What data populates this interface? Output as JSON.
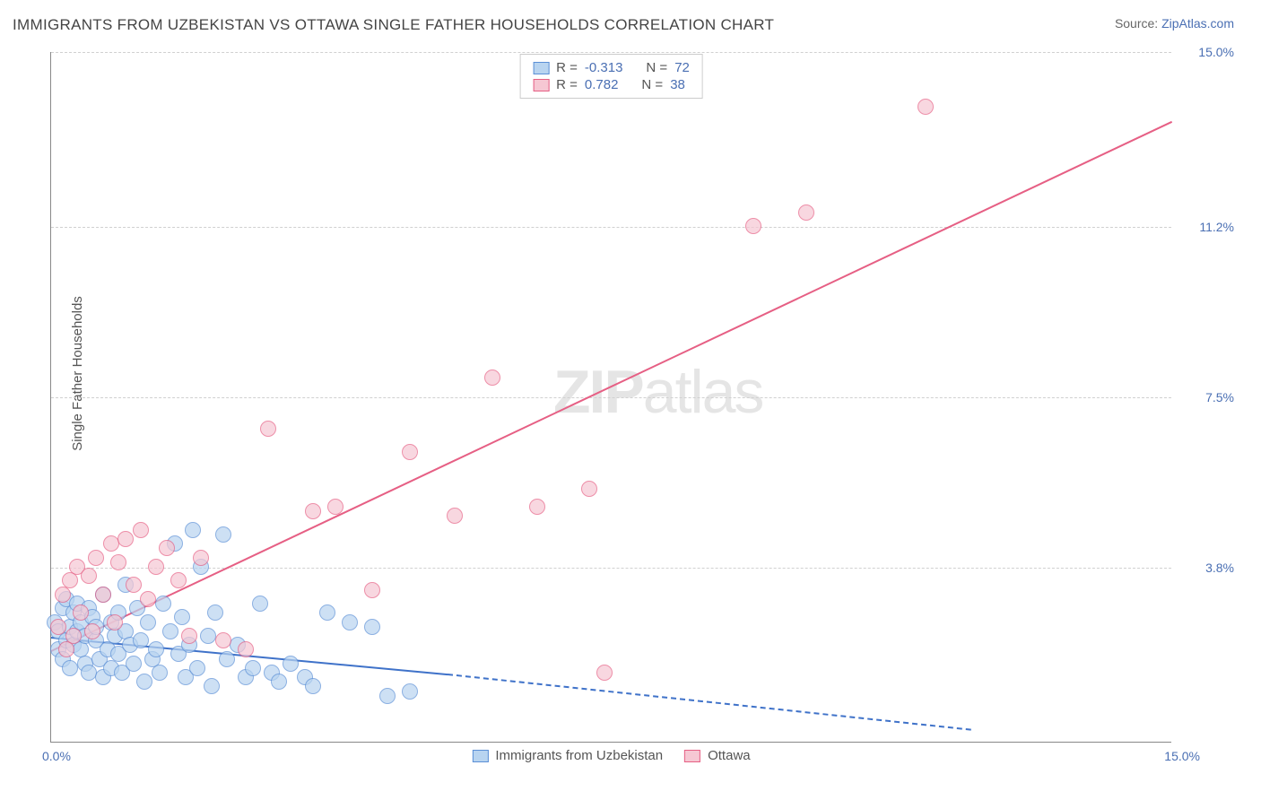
{
  "header": {
    "title": "IMMIGRANTS FROM UZBEKISTAN VS OTTAWA SINGLE FATHER HOUSEHOLDS CORRELATION CHART",
    "source_prefix": "Source: ",
    "source_link": "ZipAtlas.com"
  },
  "yaxis": {
    "label": "Single Father Households"
  },
  "xaxis": {
    "min_label": "0.0%",
    "max_label": "15.0%"
  },
  "chart": {
    "type": "scatter",
    "xlim": [
      0,
      15
    ],
    "ylim": [
      0,
      15
    ],
    "background_color": "#ffffff",
    "grid_color": "#d0d0d0",
    "grid_dash": true,
    "yticks": [
      {
        "value": 3.8,
        "label": "3.8%"
      },
      {
        "value": 7.5,
        "label": "7.5%"
      },
      {
        "value": 11.2,
        "label": "11.2%"
      },
      {
        "value": 15.0,
        "label": "15.0%"
      }
    ],
    "series": [
      {
        "name": "Immigrants from Uzbekistan",
        "marker_fill": "#b8d4f0",
        "marker_stroke": "#5b8fd6",
        "marker_opacity": 0.7,
        "marker_radius": 9,
        "trend": {
          "color": "#3f72c9",
          "width": 2,
          "start": [
            0,
            2.3
          ],
          "solid_end": [
            5.3,
            1.5
          ],
          "end": [
            12.3,
            0.3
          ],
          "dashed_after_solid": true
        },
        "r": "-0.313",
        "n": "72",
        "points": [
          [
            0.05,
            2.6
          ],
          [
            0.1,
            2.0
          ],
          [
            0.1,
            2.4
          ],
          [
            0.15,
            2.9
          ],
          [
            0.15,
            1.8
          ],
          [
            0.2,
            2.2
          ],
          [
            0.2,
            3.1
          ],
          [
            0.25,
            2.5
          ],
          [
            0.25,
            1.6
          ],
          [
            0.3,
            2.8
          ],
          [
            0.3,
            2.1
          ],
          [
            0.35,
            2.4
          ],
          [
            0.35,
            3.0
          ],
          [
            0.4,
            2.0
          ],
          [
            0.4,
            2.6
          ],
          [
            0.45,
            1.7
          ],
          [
            0.45,
            2.3
          ],
          [
            0.5,
            2.9
          ],
          [
            0.5,
            1.5
          ],
          [
            0.55,
            2.7
          ],
          [
            0.6,
            2.2
          ],
          [
            0.6,
            2.5
          ],
          [
            0.65,
            1.8
          ],
          [
            0.7,
            3.2
          ],
          [
            0.7,
            1.4
          ],
          [
            0.75,
            2.0
          ],
          [
            0.8,
            2.6
          ],
          [
            0.8,
            1.6
          ],
          [
            0.85,
            2.3
          ],
          [
            0.9,
            1.9
          ],
          [
            0.9,
            2.8
          ],
          [
            0.95,
            1.5
          ],
          [
            1.0,
            2.4
          ],
          [
            1.0,
            3.4
          ],
          [
            1.05,
            2.1
          ],
          [
            1.1,
            1.7
          ],
          [
            1.15,
            2.9
          ],
          [
            1.2,
            2.2
          ],
          [
            1.25,
            1.3
          ],
          [
            1.3,
            2.6
          ],
          [
            1.35,
            1.8
          ],
          [
            1.4,
            2.0
          ],
          [
            1.45,
            1.5
          ],
          [
            1.5,
            3.0
          ],
          [
            1.6,
            2.4
          ],
          [
            1.65,
            4.3
          ],
          [
            1.7,
            1.9
          ],
          [
            1.75,
            2.7
          ],
          [
            1.8,
            1.4
          ],
          [
            1.85,
            2.1
          ],
          [
            1.9,
            4.6
          ],
          [
            1.95,
            1.6
          ],
          [
            2.0,
            3.8
          ],
          [
            2.1,
            2.3
          ],
          [
            2.15,
            1.2
          ],
          [
            2.2,
            2.8
          ],
          [
            2.3,
            4.5
          ],
          [
            2.35,
            1.8
          ],
          [
            2.5,
            2.1
          ],
          [
            2.6,
            1.4
          ],
          [
            2.7,
            1.6
          ],
          [
            2.8,
            3.0
          ],
          [
            2.95,
            1.5
          ],
          [
            3.05,
            1.3
          ],
          [
            3.2,
            1.7
          ],
          [
            3.4,
            1.4
          ],
          [
            3.5,
            1.2
          ],
          [
            3.7,
            2.8
          ],
          [
            4.0,
            2.6
          ],
          [
            4.3,
            2.5
          ],
          [
            4.5,
            1.0
          ],
          [
            4.8,
            1.1
          ]
        ]
      },
      {
        "name": "Ottawa",
        "marker_fill": "#f6c7d3",
        "marker_stroke": "#e65f84",
        "marker_opacity": 0.7,
        "marker_radius": 9,
        "trend": {
          "color": "#e65f84",
          "width": 2,
          "start": [
            0,
            2.0
          ],
          "end": [
            15,
            13.5
          ],
          "dashed_after_solid": false
        },
        "r": "0.782",
        "n": "38",
        "points": [
          [
            0.1,
            2.5
          ],
          [
            0.15,
            3.2
          ],
          [
            0.2,
            2.0
          ],
          [
            0.25,
            3.5
          ],
          [
            0.3,
            2.3
          ],
          [
            0.35,
            3.8
          ],
          [
            0.4,
            2.8
          ],
          [
            0.5,
            3.6
          ],
          [
            0.55,
            2.4
          ],
          [
            0.6,
            4.0
          ],
          [
            0.7,
            3.2
          ],
          [
            0.8,
            4.3
          ],
          [
            0.85,
            2.6
          ],
          [
            0.9,
            3.9
          ],
          [
            1.0,
            4.4
          ],
          [
            1.1,
            3.4
          ],
          [
            1.2,
            4.6
          ],
          [
            1.3,
            3.1
          ],
          [
            1.4,
            3.8
          ],
          [
            1.55,
            4.2
          ],
          [
            1.7,
            3.5
          ],
          [
            1.85,
            2.3
          ],
          [
            2.0,
            4.0
          ],
          [
            2.3,
            2.2
          ],
          [
            2.6,
            2.0
          ],
          [
            2.9,
            6.8
          ],
          [
            3.5,
            5.0
          ],
          [
            3.8,
            5.1
          ],
          [
            4.3,
            3.3
          ],
          [
            4.8,
            6.3
          ],
          [
            5.4,
            4.9
          ],
          [
            5.9,
            7.9
          ],
          [
            6.5,
            5.1
          ],
          [
            7.2,
            5.5
          ],
          [
            7.4,
            1.5
          ],
          [
            9.4,
            11.2
          ],
          [
            10.1,
            11.5
          ],
          [
            11.7,
            13.8
          ]
        ]
      }
    ]
  },
  "legend_top": {
    "r_label": "R =",
    "n_label": "N ="
  },
  "legend_bottom": {
    "items": [
      "Immigrants from Uzbekistan",
      "Ottawa"
    ]
  },
  "watermark": {
    "bold": "ZIP",
    "rest": "atlas"
  }
}
